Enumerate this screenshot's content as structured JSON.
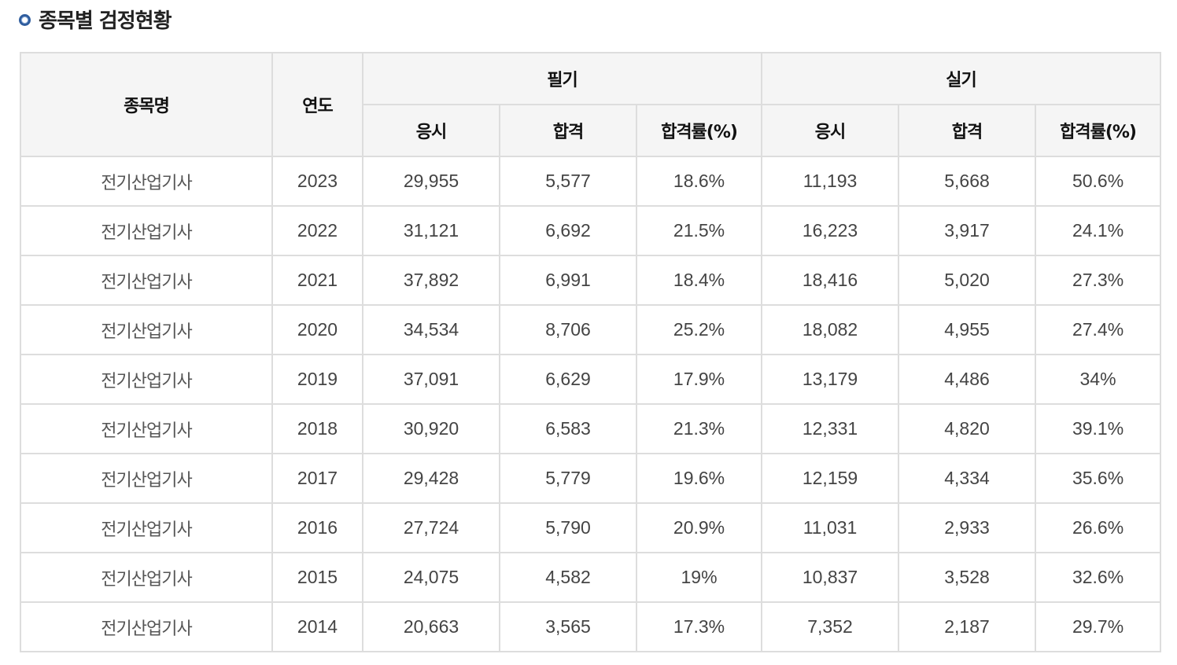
{
  "section": {
    "title": "종목별 검정현황"
  },
  "table": {
    "headers": {
      "item_name": "종목명",
      "year": "연도",
      "written": "필기",
      "practical": "실기",
      "sub": [
        "응시",
        "합격",
        "합격률(%)",
        "응시",
        "합격",
        "합격률(%)"
      ]
    },
    "rows": [
      [
        "전기산업기사",
        "2023",
        "29,955",
        "5,577",
        "18.6%",
        "11,193",
        "5,668",
        "50.6%"
      ],
      [
        "전기산업기사",
        "2022",
        "31,121",
        "6,692",
        "21.5%",
        "16,223",
        "3,917",
        "24.1%"
      ],
      [
        "전기산업기사",
        "2021",
        "37,892",
        "6,991",
        "18.4%",
        "18,416",
        "5,020",
        "27.3%"
      ],
      [
        "전기산업기사",
        "2020",
        "34,534",
        "8,706",
        "25.2%",
        "18,082",
        "4,955",
        "27.4%"
      ],
      [
        "전기산업기사",
        "2019",
        "37,091",
        "6,629",
        "17.9%",
        "13,179",
        "4,486",
        "34%"
      ],
      [
        "전기산업기사",
        "2018",
        "30,920",
        "6,583",
        "21.3%",
        "12,331",
        "4,820",
        "39.1%"
      ],
      [
        "전기산업기사",
        "2017",
        "29,428",
        "5,779",
        "19.6%",
        "12,159",
        "4,334",
        "35.6%"
      ],
      [
        "전기산업기사",
        "2016",
        "27,724",
        "5,790",
        "20.9%",
        "11,031",
        "2,933",
        "26.6%"
      ],
      [
        "전기산업기사",
        "2015",
        "24,075",
        "4,582",
        "19%",
        "10,837",
        "3,528",
        "32.6%"
      ],
      [
        "전기산업기사",
        "2014",
        "20,663",
        "3,565",
        "17.3%",
        "7,352",
        "2,187",
        "29.7%"
      ]
    ]
  }
}
